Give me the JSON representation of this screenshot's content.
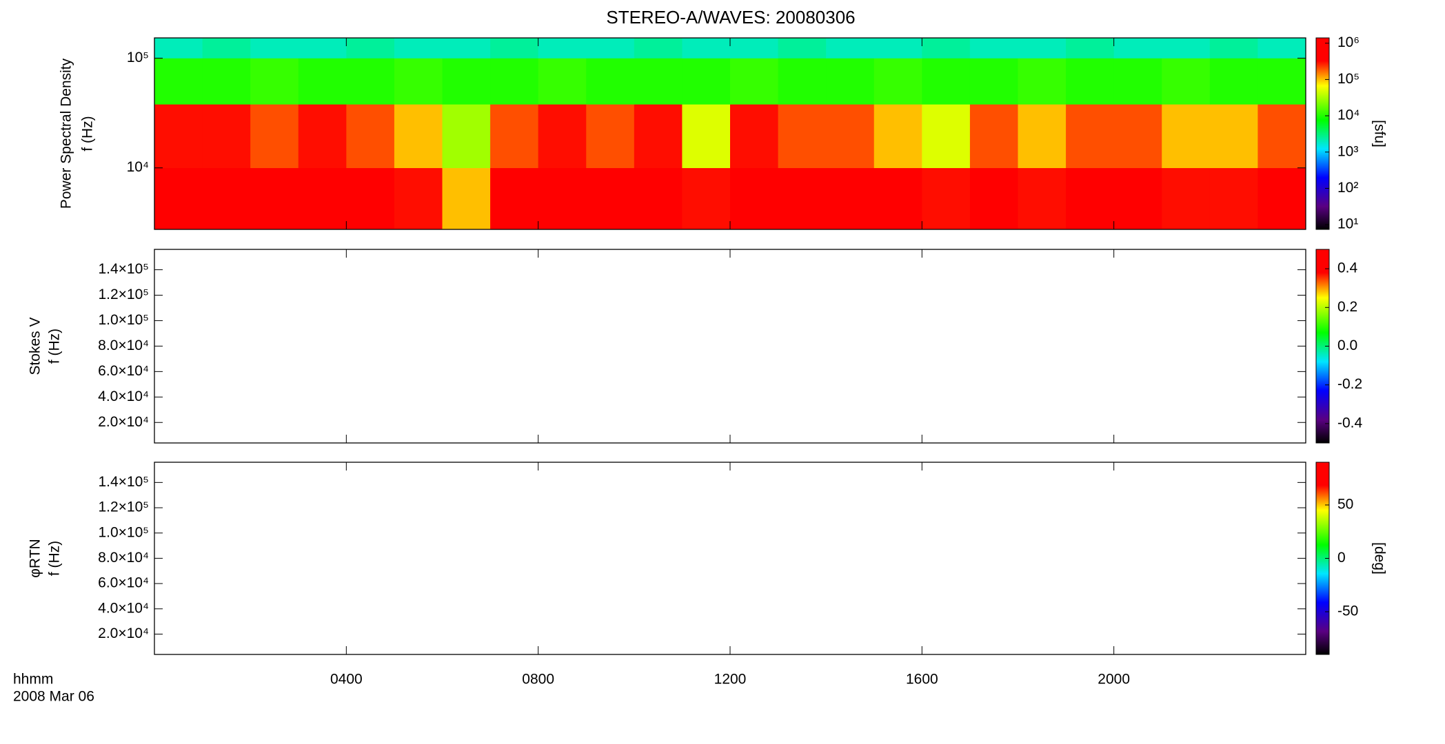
{
  "chart_data": {
    "type": "spectrogram",
    "title": "STEREO-A/WAVES: 20080306",
    "x_label": [
      "hhmm",
      "2008 Mar 06"
    ],
    "xlim": [
      0,
      24
    ],
    "xticks": [
      {
        "value": 4,
        "label": "0400"
      },
      {
        "value": 8,
        "label": "0800"
      },
      {
        "value": 12,
        "label": "1200"
      },
      {
        "value": 16,
        "label": "1600"
      },
      {
        "value": 20,
        "label": "2000"
      }
    ],
    "colormap": "rainbow",
    "panels": [
      {
        "ylabel": [
          "Power Spectral Density",
          "f (Hz)"
        ],
        "ylog": true,
        "ylim": [
          2750,
          153000
        ],
        "yticks": [
          {
            "value": 10000,
            "label": "10⁴"
          },
          {
            "value": 100000,
            "label": "10⁵"
          }
        ],
        "colorbar": {
          "log": true,
          "clim": [
            7.4,
            1400000
          ],
          "label": "[sfu]",
          "ticks": [
            {
              "value": 10,
              "label": "10¹"
            },
            {
              "value": 100,
              "label": "10²"
            },
            {
              "value": 1000,
              "label": "10³"
            },
            {
              "value": 10000,
              "label": "10⁴"
            },
            {
              "value": 100000,
              "label": "10⁵"
            },
            {
              "value": 1000000,
              "label": "10⁶"
            }
          ]
        },
        "x_edges": [
          0,
          1,
          2,
          3,
          4,
          5,
          6,
          7,
          8,
          9,
          10,
          11,
          12,
          13,
          14,
          15,
          16,
          17,
          18,
          19,
          20,
          21,
          22,
          23,
          24
        ],
        "y_edges": [
          2750,
          10000,
          38000,
          100000,
          153000
        ],
        "values": [
          [
            1000000,
            1000000,
            1000000,
            1000000,
            1000000,
            300000,
            100000,
            1000000,
            1000000,
            1000000,
            1000000,
            300000,
            1000000,
            1000000,
            1000000,
            1000000,
            300000,
            1000000,
            300000,
            1000000,
            1000000,
            300000,
            300000,
            1000000
          ],
          [
            300000,
            300000,
            200000,
            300000,
            200000,
            100000,
            30000,
            200000,
            300000,
            200000,
            300000,
            50000,
            300000,
            200000,
            200000,
            100000,
            50000,
            200000,
            100000,
            200000,
            200000,
            100000,
            100000,
            200000
          ],
          [
            10000,
            10000,
            12000,
            10000,
            10000,
            12000,
            10000,
            10000,
            12000,
            10000,
            10000,
            10000,
            12000,
            10000,
            10000,
            12000,
            10000,
            10000,
            12000,
            10000,
            10000,
            12000,
            10000,
            10000
          ],
          [
            2000,
            2500,
            2000,
            2000,
            2500,
            2000,
            2000,
            2500,
            2000,
            2000,
            2500,
            2000,
            2000,
            2500,
            2000,
            2000,
            2500,
            2000,
            2000,
            2500,
            2000,
            2000,
            2500,
            2000
          ]
        ]
      },
      {
        "ylabel": [
          "Stokes V",
          "f (Hz)"
        ],
        "ylog": false,
        "ylim": [
          3900,
          156000
        ],
        "yticks": [
          {
            "value": 20000,
            "label": "2.0×10⁴"
          },
          {
            "value": 40000,
            "label": "4.0×10⁴"
          },
          {
            "value": 60000,
            "label": "6.0×10⁴"
          },
          {
            "value": 80000,
            "label": "8.0×10⁴"
          },
          {
            "value": 100000,
            "label": "1.0×10⁵"
          },
          {
            "value": 120000,
            "label": "1.2×10⁵"
          },
          {
            "value": 140000,
            "label": "1.4×10⁵"
          }
        ],
        "colorbar": {
          "log": false,
          "clim": [
            -0.5,
            0.5
          ],
          "ticks": [
            -0.4,
            -0.2,
            {
              "value": 0,
              "label": "0.0"
            },
            0.2,
            0.4
          ]
        }
      },
      {
        "ylabel": [
          "φRTN",
          "f (Hz)"
        ],
        "ylog": false,
        "ylim": [
          3900,
          156000
        ],
        "yticks": [
          {
            "value": 20000,
            "label": "2.0×10⁴"
          },
          {
            "value": 40000,
            "label": "4.0×10⁴"
          },
          {
            "value": 60000,
            "label": "6.0×10⁴"
          },
          {
            "value": 80000,
            "label": "8.0×10⁴"
          },
          {
            "value": 100000,
            "label": "1.0×10⁵"
          },
          {
            "value": 120000,
            "label": "1.2×10⁵"
          },
          {
            "value": 140000,
            "label": "1.4×10⁵"
          }
        ],
        "colorbar": {
          "log": false,
          "clim": [
            -90,
            90
          ],
          "label": "[deg]",
          "ticks": [
            -50,
            0,
            50
          ]
        }
      }
    ]
  }
}
